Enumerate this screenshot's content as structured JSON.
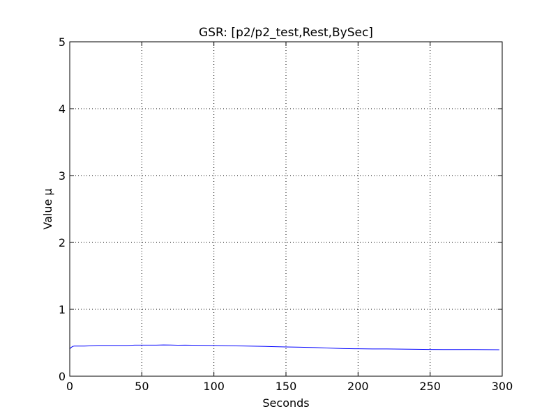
{
  "chart_data": {
    "type": "line",
    "title": "GSR: [p2/p2_test,Rest,BySec]",
    "xlabel": "Seconds",
    "ylabel": "Value μ",
    "xlim": [
      0,
      300
    ],
    "ylim": [
      0,
      5
    ],
    "xticks": [
      0,
      50,
      100,
      150,
      200,
      250,
      300
    ],
    "yticks": [
      0,
      1,
      2,
      3,
      4,
      5
    ],
    "xtick_labels": [
      "0",
      "50",
      "100",
      "150",
      "200",
      "250",
      "300"
    ],
    "ytick_labels": [
      "0",
      "1",
      "2",
      "3",
      "4",
      "5"
    ],
    "grid": true,
    "series": [
      {
        "color": "#0000ff",
        "x": [
          0,
          1,
          2,
          3,
          5,
          10,
          15,
          20,
          30,
          40,
          45,
          50,
          60,
          65,
          70,
          75,
          80,
          90,
          100,
          110,
          120,
          130,
          140,
          150,
          160,
          170,
          180,
          190,
          200,
          210,
          220,
          230,
          240,
          250,
          260,
          270,
          280,
          290,
          298
        ],
        "y": [
          0.41,
          0.43,
          0.445,
          0.45,
          0.45,
          0.45,
          0.455,
          0.46,
          0.46,
          0.46,
          0.465,
          0.465,
          0.465,
          0.467,
          0.466,
          0.464,
          0.465,
          0.462,
          0.46,
          0.455,
          0.452,
          0.448,
          0.443,
          0.438,
          0.433,
          0.428,
          0.42,
          0.413,
          0.41,
          0.408,
          0.407,
          0.405,
          0.402,
          0.4,
          0.399,
          0.398,
          0.398,
          0.397,
          0.396
        ]
      }
    ]
  }
}
